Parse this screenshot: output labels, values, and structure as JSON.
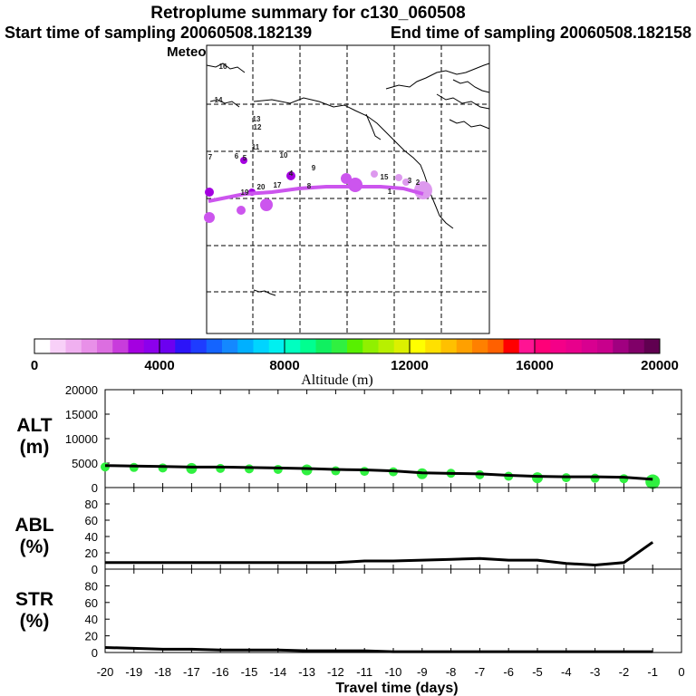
{
  "titles": {
    "main": "Retroplume summary for c130_060508",
    "start": "Start time of sampling 20060508.182139",
    "end": "End time of sampling 20060508.182158",
    "met": "Meteorological data used is GFS"
  },
  "colorbar": {
    "title": "Altitude (m)",
    "ticks": [
      "0",
      "4000",
      "8000",
      "12000",
      "16000",
      "20000"
    ],
    "colors": [
      "#ffffff",
      "#f8d0f8",
      "#f0b0f0",
      "#e890e8",
      "#dc6ee0",
      "#c83cdc",
      "#a400e0",
      "#8c00ec",
      "#6c00f0",
      "#2c14f8",
      "#1e3cff",
      "#1464ff",
      "#1488ff",
      "#00b0ff",
      "#00d4ff",
      "#00f0f0",
      "#00ffc0",
      "#00ff90",
      "#10f060",
      "#30f040",
      "#58f000",
      "#90f000",
      "#b8f000",
      "#dcf000",
      "#ffff00",
      "#ffe000",
      "#ffc000",
      "#ffa000",
      "#ff8000",
      "#ff6000",
      "#ff0000",
      "#ff1493",
      "#ff0078",
      "#f40088",
      "#e8008c",
      "#d80090",
      "#c8008c",
      "#a00080",
      "#800068",
      "#600050"
    ]
  },
  "map": {
    "plume_color": "#cc55ee",
    "labels": [
      "16",
      "14",
      "13",
      "12",
      "11",
      "10",
      "7",
      "6",
      "5",
      "4",
      "9",
      "3",
      "2",
      "1",
      "19",
      "17",
      "8",
      "15",
      "20"
    ]
  },
  "panels": {
    "alt": {
      "label1": "ALT",
      "label2": "(m)",
      "yticks": [
        "20000",
        "15000",
        "10000",
        "5000",
        "0"
      ]
    },
    "abl": {
      "label1": "ABL",
      "label2": "(%)",
      "yticks": [
        "80",
        "60",
        "40",
        "20",
        "0"
      ]
    },
    "str": {
      "label1": "STR",
      "label2": "(%)",
      "yticks": [
        "80",
        "60",
        "40",
        "20",
        "0"
      ]
    }
  },
  "xaxis": {
    "title": "Travel time (days)",
    "ticks": [
      "-20",
      "-19",
      "-18",
      "-17",
      "-16",
      "-15",
      "-14",
      "-13",
      "-12",
      "-11",
      "-10",
      "-9",
      "-8",
      "-7",
      "-6",
      "-5",
      "-4",
      "-3",
      "-2",
      "-1",
      "0"
    ]
  },
  "chart_data": [
    {
      "type": "line",
      "name": "ALT",
      "ylabel": "ALT (m)",
      "ylim": [
        0,
        20000
      ],
      "x": [
        -20,
        -19,
        -18,
        -17,
        -16,
        -15,
        -14,
        -13,
        -12,
        -11,
        -10,
        -9,
        -8,
        -7,
        -6,
        -5,
        -4,
        -3,
        -2,
        -1
      ],
      "values": [
        4500,
        4400,
        4300,
        4200,
        4200,
        4100,
        4000,
        3900,
        3700,
        3600,
        3400,
        3000,
        2900,
        2800,
        2500,
        2300,
        2200,
        2200,
        2100,
        1700
      ],
      "spread_x": [
        -20,
        -19,
        -18,
        -17,
        -16,
        -15,
        -14,
        -13,
        -12,
        -11,
        -10,
        -9,
        -8,
        -7,
        -6,
        -5,
        -4,
        -3,
        -2,
        -1
      ],
      "spread_values": [
        4400,
        4300,
        4200,
        4100,
        4100,
        4000,
        3900,
        3800,
        3600,
        3500,
        3400,
        3000,
        3100,
        2800,
        2500,
        2200,
        2200,
        2100,
        2000,
        1400
      ],
      "spread_color": "#30f040"
    },
    {
      "type": "line",
      "name": "ABL",
      "ylabel": "ABL (%)",
      "ylim": [
        0,
        100
      ],
      "x": [
        -20,
        -19,
        -18,
        -17,
        -16,
        -15,
        -14,
        -13,
        -12,
        -11,
        -10,
        -9,
        -8,
        -7,
        -6,
        -5,
        -4,
        -3,
        -2,
        -1
      ],
      "values": [
        8,
        8,
        8,
        8,
        8,
        8,
        8,
        8,
        8,
        10,
        10,
        11,
        12,
        13,
        11,
        11,
        7,
        5,
        8,
        33
      ]
    },
    {
      "type": "line",
      "name": "STR",
      "ylabel": "STR (%)",
      "ylim": [
        0,
        100
      ],
      "x": [
        -20,
        -19,
        -18,
        -17,
        -16,
        -15,
        -14,
        -13,
        -12,
        -11,
        -10,
        -9,
        -8,
        -7,
        -6,
        -5,
        -4,
        -3,
        -2,
        -1
      ],
      "values": [
        6,
        5,
        4,
        4,
        3,
        3,
        3,
        2,
        2,
        2,
        1,
        1,
        1,
        1,
        1,
        1,
        1,
        1,
        1,
        1
      ]
    }
  ]
}
